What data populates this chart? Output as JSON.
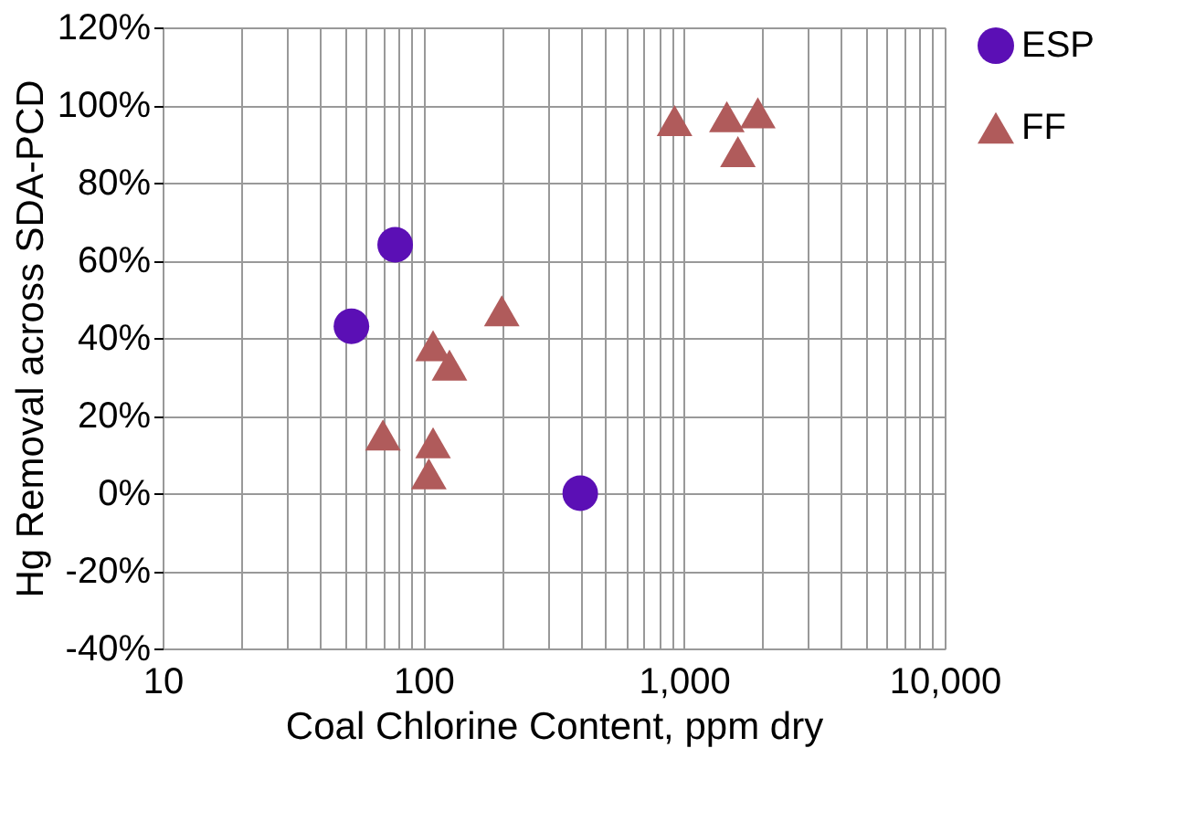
{
  "chart_data": {
    "type": "scatter",
    "xlabel": "Coal Chlorine Content, ppm dry",
    "ylabel": "Hg Removal across SDA-PCD",
    "log": "x",
    "grid": true,
    "legend": "right",
    "xlim": [
      10,
      10000
    ],
    "xticks": [
      10,
      {
        "value": 20,
        "label": null
      },
      {
        "value": 30,
        "label": null
      },
      {
        "value": 40,
        "label": null
      },
      {
        "value": 50,
        "label": null
      },
      {
        "value": 60,
        "label": null
      },
      {
        "value": 70,
        "label": null
      },
      {
        "value": 80,
        "label": null
      },
      {
        "value": 90,
        "label": null
      },
      100,
      {
        "value": 200,
        "label": null
      },
      {
        "value": 300,
        "label": null
      },
      {
        "value": 400,
        "label": null
      },
      {
        "value": 500,
        "label": null
      },
      {
        "value": 600,
        "label": null
      },
      {
        "value": 700,
        "label": null
      },
      {
        "value": 800,
        "label": null
      },
      {
        "value": 900,
        "label": null
      },
      {
        "value": 1000,
        "label": "1,000"
      },
      {
        "value": 2000,
        "label": null
      },
      {
        "value": 3000,
        "label": null
      },
      {
        "value": 4000,
        "label": null
      },
      {
        "value": 5000,
        "label": null
      },
      {
        "value": 6000,
        "label": null
      },
      {
        "value": 7000,
        "label": null
      },
      {
        "value": 8000,
        "label": null
      },
      {
        "value": 9000,
        "label": null
      },
      {
        "value": 10000,
        "label": "10,000"
      }
    ],
    "ylim": [
      -40,
      120
    ],
    "yticks": [
      {
        "value": -40,
        "label": "-40%"
      },
      {
        "value": -20,
        "label": "-20%"
      },
      {
        "value": 0,
        "label": "0%"
      },
      {
        "value": 20,
        "label": "20%"
      },
      {
        "value": 40,
        "label": "40%"
      },
      {
        "value": 60,
        "label": "60%"
      },
      {
        "value": 80,
        "label": "80%"
      },
      {
        "value": 100,
        "label": "100%"
      },
      {
        "value": 120,
        "label": "120%"
      }
    ],
    "series": [
      {
        "name": "ESP",
        "color": "#5b0fb5",
        "marker": "circle",
        "x": [
          53,
          78,
          400
        ],
        "values": [
          43,
          64,
          0
        ]
      },
      {
        "name": "FF",
        "color": "#b05b5b",
        "marker": "triangle",
        "x": [
          70,
          105,
          109,
          109,
          126,
          200,
          920,
          1460,
          1610,
          1920
        ],
        "values": [
          15,
          5,
          13,
          38,
          33,
          47,
          96,
          97,
          88,
          98
        ]
      }
    ]
  }
}
